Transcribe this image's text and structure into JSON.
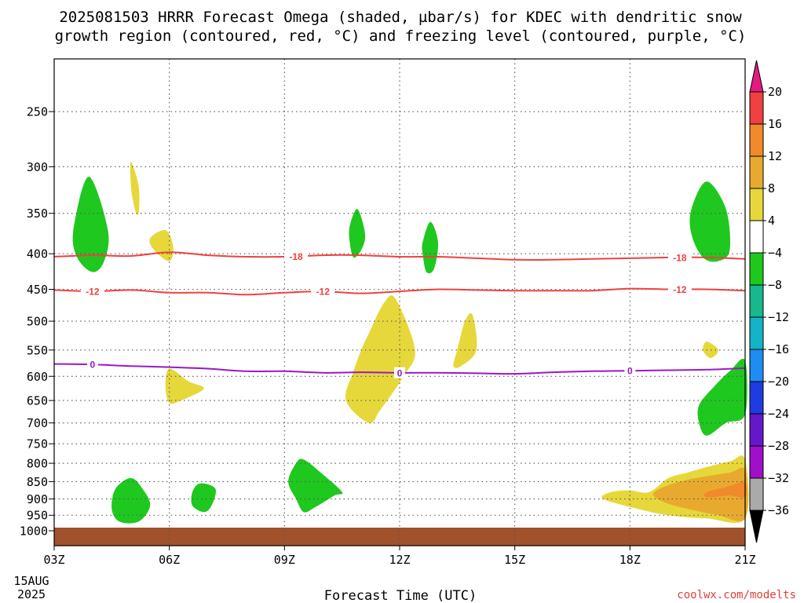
{
  "title_line1": "2025081503 HRRR Forecast Omega (shaded, µbar/s) for KDEC with dendritic snow",
  "title_line2": "growth region (contoured, red, °C) and freezing level (contoured, purple, °C)",
  "xlabel": "Forecast Time (UTC)",
  "credit": "coolwx.com/modelts",
  "x_date_line2": "15AUG",
  "x_date_line3": "2025",
  "chart_data": {
    "type": "heatmap",
    "title": "2025081503 HRRR Forecast Omega (shaded, µbar/s) for KDEC with dendritic snow growth region (contoured, red, °C) and freezing level (contoured, purple, °C)",
    "xlabel": "Forecast Time (UTC)",
    "ylabel": "",
    "x_unit": "forecast hour from 03Z 15AUG2025",
    "xlim": [
      0,
      18
    ],
    "ylim": [
      1000,
      200
    ],
    "y_scale": "log-pressure",
    "grid": true,
    "x_ticks": [
      {
        "h": 0,
        "label": "03Z"
      },
      {
        "h": 3,
        "label": "06Z"
      },
      {
        "h": 6,
        "label": "09Z"
      },
      {
        "h": 9,
        "label": "12Z"
      },
      {
        "h": 12,
        "label": "15Z"
      },
      {
        "h": 15,
        "label": "18Z"
      },
      {
        "h": 18,
        "label": "21Z"
      }
    ],
    "y_ticks": [
      250,
      300,
      350,
      400,
      450,
      500,
      550,
      600,
      650,
      700,
      750,
      800,
      850,
      900,
      950,
      1000
    ],
    "colorbar": {
      "labels": [
        "20",
        "16",
        "12",
        "8",
        "4",
        "−4",
        "−8",
        "−12",
        "−16",
        "−20",
        "−24",
        "−28",
        "−32",
        "−36"
      ],
      "colors": [
        "#e6197e",
        "#f04040",
        "#f08a2a",
        "#e8aa2e",
        "#e6d83a",
        "#ffffff",
        "#1ec81e",
        "#16b88c",
        "#14b4c8",
        "#1e8cf0",
        "#1e3ce0",
        "#6418c8",
        "#a010c8",
        "#aaaaaa",
        "#000000"
      ]
    },
    "contours": [
      {
        "kind": "dendritic",
        "value": -18,
        "label": "-18",
        "color": "#f04040",
        "points": [
          [
            0,
            404
          ],
          [
            1,
            402
          ],
          [
            2,
            403
          ],
          [
            3,
            398
          ],
          [
            4,
            402
          ],
          [
            5,
            404
          ],
          [
            6,
            404
          ],
          [
            7,
            402
          ],
          [
            8,
            402
          ],
          [
            9,
            404
          ],
          [
            10,
            404
          ],
          [
            11,
            406
          ],
          [
            12,
            408
          ],
          [
            13,
            408
          ],
          [
            14,
            407
          ],
          [
            15,
            406
          ],
          [
            16,
            405
          ],
          [
            17,
            405
          ],
          [
            18,
            407
          ]
        ],
        "label_at": [
          6.3,
          16.3
        ]
      },
      {
        "kind": "dendritic",
        "value": -12,
        "label": "-12",
        "color": "#f04040",
        "points": [
          [
            0,
            451
          ],
          [
            1,
            453
          ],
          [
            2,
            451
          ],
          [
            3,
            455
          ],
          [
            4,
            455
          ],
          [
            5,
            458
          ],
          [
            6,
            455
          ],
          [
            7,
            453
          ],
          [
            8,
            456
          ],
          [
            9,
            453
          ],
          [
            10,
            450
          ],
          [
            11,
            451
          ],
          [
            12,
            452
          ],
          [
            13,
            452
          ],
          [
            14,
            452
          ],
          [
            15,
            449
          ],
          [
            16,
            450
          ],
          [
            17,
            450
          ],
          [
            18,
            452
          ]
        ],
        "label_at": [
          1.0,
          7.0,
          16.3
        ]
      },
      {
        "kind": "freezing_level",
        "value": 0,
        "label": "0",
        "color": "#9a18c8",
        "points": [
          [
            0,
            576
          ],
          [
            1,
            577
          ],
          [
            2,
            580
          ],
          [
            3,
            582
          ],
          [
            4,
            585
          ],
          [
            5,
            590
          ],
          [
            6,
            590
          ],
          [
            7,
            593
          ],
          [
            8,
            592
          ],
          [
            9,
            593
          ],
          [
            10,
            593
          ],
          [
            11,
            594
          ],
          [
            12,
            595
          ],
          [
            13,
            592
          ],
          [
            14,
            590
          ],
          [
            15,
            589
          ],
          [
            16,
            588
          ],
          [
            17,
            587
          ],
          [
            18,
            584
          ]
        ],
        "label_at": [
          1.0,
          9.0,
          15.0
        ]
      }
    ],
    "omega_regions": [
      {
        "color": "#1ec81e",
        "points": [
          [
            0.5,
            370
          ],
          [
            0.9,
            310
          ],
          [
            1.4,
            370
          ],
          [
            1.3,
            410
          ],
          [
            1.0,
            425
          ],
          [
            0.6,
            405
          ]
        ]
      },
      {
        "color": "#e6d83a",
        "points": [
          [
            2.0,
            295
          ],
          [
            2.2,
            320
          ],
          [
            2.2,
            350
          ],
          [
            2.1,
            345
          ],
          [
            2.0,
            320
          ]
        ]
      },
      {
        "color": "#e6d83a",
        "points": [
          [
            2.5,
            380
          ],
          [
            2.9,
            370
          ],
          [
            3.1,
            390
          ],
          [
            3.0,
            410
          ],
          [
            2.6,
            395
          ]
        ]
      },
      {
        "color": "#1ec81e",
        "points": [
          [
            7.7,
            365
          ],
          [
            7.9,
            345
          ],
          [
            8.1,
            375
          ],
          [
            8.0,
            395
          ],
          [
            7.8,
            405
          ],
          [
            7.7,
            385
          ]
        ]
      },
      {
        "color": "#1ec81e",
        "points": [
          [
            9.6,
            385
          ],
          [
            9.8,
            360
          ],
          [
            10.0,
            385
          ],
          [
            9.9,
            420
          ],
          [
            9.7,
            425
          ],
          [
            9.6,
            400
          ]
        ]
      },
      {
        "color": "#1ec81e",
        "points": [
          [
            16.6,
            345
          ],
          [
            17.0,
            315
          ],
          [
            17.5,
            345
          ],
          [
            17.6,
            395
          ],
          [
            17.3,
            410
          ],
          [
            16.9,
            405
          ],
          [
            16.6,
            375
          ]
        ]
      },
      {
        "color": "#e6d83a",
        "points": [
          [
            8.2,
            520
          ],
          [
            8.6,
            470
          ],
          [
            8.9,
            465
          ],
          [
            9.4,
            550
          ],
          [
            9.1,
            600
          ],
          [
            8.5,
            670
          ],
          [
            8.2,
            700
          ],
          [
            7.6,
            650
          ],
          [
            7.8,
            590
          ],
          [
            8.0,
            550
          ]
        ]
      },
      {
        "color": "#e6d83a",
        "points": [
          [
            10.5,
            550
          ],
          [
            10.7,
            500
          ],
          [
            10.9,
            490
          ],
          [
            11.0,
            550
          ],
          [
            10.6,
            580
          ],
          [
            10.4,
            580
          ]
        ]
      },
      {
        "color": "#e6d83a",
        "points": [
          [
            3.0,
            585
          ],
          [
            3.5,
            610
          ],
          [
            3.9,
            625
          ],
          [
            3.3,
            650
          ],
          [
            3.0,
            655
          ],
          [
            2.9,
            620
          ]
        ]
      },
      {
        "color": "#e6d83a",
        "points": [
          [
            16.9,
            550
          ],
          [
            17.0,
            535
          ],
          [
            17.3,
            550
          ],
          [
            17.1,
            565
          ]
        ]
      },
      {
        "color": "#1ec81e",
        "points": [
          [
            16.8,
            660
          ],
          [
            17.2,
            620
          ],
          [
            17.6,
            590
          ],
          [
            18.0,
            570
          ],
          [
            18.0,
            680
          ],
          [
            17.5,
            700
          ],
          [
            17.0,
            730
          ],
          [
            16.8,
            700
          ]
        ]
      },
      {
        "color": "#1ec81e",
        "points": [
          [
            1.6,
            870
          ],
          [
            2.0,
            840
          ],
          [
            2.3,
            870
          ],
          [
            2.5,
            920
          ],
          [
            2.2,
            970
          ],
          [
            1.7,
            970
          ],
          [
            1.5,
            930
          ]
        ]
      },
      {
        "color": "#1ec81e",
        "points": [
          [
            3.6,
            880
          ],
          [
            3.8,
            855
          ],
          [
            4.2,
            870
          ],
          [
            4.1,
            920
          ],
          [
            3.9,
            940
          ],
          [
            3.6,
            920
          ]
        ]
      },
      {
        "color": "#1ec81e",
        "points": [
          [
            6.3,
            800
          ],
          [
            6.5,
            790
          ],
          [
            7.0,
            830
          ],
          [
            7.5,
            880
          ],
          [
            7.3,
            890
          ],
          [
            6.8,
            925
          ],
          [
            6.5,
            940
          ],
          [
            6.3,
            900
          ],
          [
            6.1,
            850
          ]
        ]
      },
      {
        "color": "#e6d83a",
        "points": [
          [
            15.5,
            880
          ],
          [
            16.0,
            840
          ],
          [
            16.5,
            825
          ],
          [
            17.0,
            810
          ],
          [
            17.6,
            795
          ],
          [
            18.0,
            790
          ],
          [
            18.0,
            960
          ],
          [
            17.0,
            960
          ],
          [
            16.0,
            950
          ],
          [
            15.2,
            930
          ],
          [
            14.3,
            900
          ],
          [
            14.5,
            880
          ],
          [
            15.0,
            875
          ]
        ]
      },
      {
        "color": "#e8aa2e",
        "points": [
          [
            16.0,
            860
          ],
          [
            16.5,
            845
          ],
          [
            17.0,
            835
          ],
          [
            17.6,
            825
          ],
          [
            18.0,
            820
          ],
          [
            18.0,
            960
          ],
          [
            17.3,
            950
          ],
          [
            16.5,
            930
          ],
          [
            15.9,
            910
          ],
          [
            15.6,
            885
          ]
        ]
      },
      {
        "color": "#f08a2a",
        "points": [
          [
            17.5,
            865
          ],
          [
            17.8,
            855
          ],
          [
            18.0,
            850
          ],
          [
            18.0,
            895
          ],
          [
            17.6,
            890
          ],
          [
            17.0,
            895
          ],
          [
            17.0,
            880
          ]
        ]
      }
    ],
    "ground": {
      "from": 1000,
      "to": 1040,
      "color": "#a0522d"
    }
  }
}
